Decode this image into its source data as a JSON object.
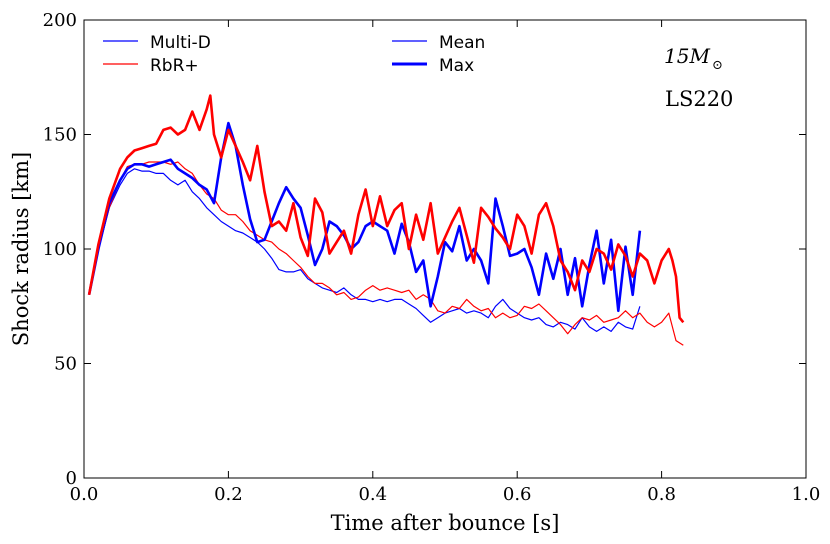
{
  "chart_data": {
    "type": "line",
    "title": "",
    "xlabel": "Time after bounce [s]",
    "ylabel": "Shock radius [km]",
    "xlim": [
      0.0,
      1.0
    ],
    "ylim": [
      0,
      200
    ],
    "xticks": [
      0.0,
      0.2,
      0.4,
      0.6,
      0.8,
      1.0
    ],
    "xtick_labels": [
      "0.0",
      "0.2",
      "0.4",
      "0.6",
      "0.8",
      "1.0"
    ],
    "yticks": [
      0,
      50,
      100,
      150,
      200
    ],
    "ytick_labels": [
      "0",
      "50",
      "100",
      "150",
      "200"
    ],
    "grid": false,
    "annotations": {
      "mass_main": "15M",
      "mass_sub": "⊙",
      "eos": "LS220"
    },
    "legend": {
      "placement": "top",
      "entries": [
        {
          "label": "Multi-D",
          "color": "#0000ff",
          "weight": "thin"
        },
        {
          "label": "RbR+",
          "color": "#ff0000",
          "weight": "thin"
        },
        {
          "label": "Mean",
          "color": "#0000ff",
          "weight": "thin"
        },
        {
          "label": "Max",
          "color": "#0000ff",
          "weight": "thick"
        }
      ]
    },
    "series": [
      {
        "name": "Multi-D",
        "stat": "Mean",
        "color": "#0000ff",
        "x": [
          0.007,
          0.02,
          0.035,
          0.05,
          0.06,
          0.07,
          0.08,
          0.09,
          0.1,
          0.11,
          0.12,
          0.13,
          0.14,
          0.15,
          0.16,
          0.17,
          0.18,
          0.19,
          0.2,
          0.21,
          0.22,
          0.23,
          0.24,
          0.25,
          0.26,
          0.27,
          0.28,
          0.29,
          0.3,
          0.31,
          0.32,
          0.33,
          0.34,
          0.35,
          0.36,
          0.37,
          0.38,
          0.39,
          0.4,
          0.41,
          0.42,
          0.43,
          0.44,
          0.45,
          0.46,
          0.47,
          0.48,
          0.49,
          0.5,
          0.51,
          0.52,
          0.53,
          0.54,
          0.55,
          0.56,
          0.57,
          0.58,
          0.59,
          0.6,
          0.61,
          0.62,
          0.63,
          0.64,
          0.65,
          0.66,
          0.67,
          0.68,
          0.69,
          0.7,
          0.71,
          0.72,
          0.73,
          0.74,
          0.75,
          0.76,
          0.77
        ],
        "y": [
          80,
          100,
          118,
          128,
          133,
          135,
          134,
          134,
          133,
          133,
          130,
          128,
          130,
          125,
          122,
          118,
          115,
          112,
          110,
          108,
          107,
          105,
          103,
          100,
          96,
          91,
          90,
          90,
          91,
          87,
          85,
          83,
          82,
          81,
          83,
          80,
          78,
          78,
          77,
          78,
          77,
          78,
          78,
          76,
          74,
          71,
          68,
          70,
          72,
          73,
          74,
          72,
          73,
          72,
          70,
          75,
          78,
          74,
          72,
          70,
          69,
          70,
          67,
          66,
          68,
          67,
          65,
          70,
          66,
          64,
          66,
          64,
          68,
          66,
          65,
          75
        ]
      },
      {
        "name": "RbR+",
        "stat": "Mean",
        "color": "#ff0000",
        "x": [
          0.007,
          0.02,
          0.035,
          0.05,
          0.06,
          0.07,
          0.08,
          0.09,
          0.1,
          0.11,
          0.12,
          0.13,
          0.14,
          0.15,
          0.16,
          0.17,
          0.18,
          0.19,
          0.2,
          0.21,
          0.22,
          0.23,
          0.24,
          0.25,
          0.26,
          0.27,
          0.28,
          0.29,
          0.3,
          0.31,
          0.32,
          0.33,
          0.34,
          0.35,
          0.36,
          0.37,
          0.38,
          0.39,
          0.4,
          0.41,
          0.42,
          0.43,
          0.44,
          0.45,
          0.46,
          0.47,
          0.48,
          0.49,
          0.5,
          0.51,
          0.52,
          0.53,
          0.54,
          0.55,
          0.56,
          0.57,
          0.58,
          0.59,
          0.6,
          0.61,
          0.62,
          0.63,
          0.64,
          0.65,
          0.66,
          0.67,
          0.68,
          0.69,
          0.7,
          0.71,
          0.72,
          0.73,
          0.74,
          0.75,
          0.76,
          0.77,
          0.78,
          0.79,
          0.8,
          0.81,
          0.82,
          0.83
        ],
        "y": [
          80,
          100,
          118,
          130,
          136,
          137,
          137,
          138,
          138,
          138,
          137,
          138,
          135,
          133,
          128,
          124,
          122,
          117,
          115,
          115,
          112,
          108,
          106,
          104,
          103,
          100,
          98,
          95,
          92,
          88,
          85,
          85,
          83,
          80,
          81,
          78,
          79,
          82,
          84,
          82,
          83,
          82,
          81,
          82,
          78,
          80,
          78,
          73,
          72,
          75,
          74,
          78,
          75,
          73,
          74,
          70,
          72,
          70,
          71,
          75,
          74,
          76,
          73,
          70,
          67,
          63,
          67,
          70,
          69,
          71,
          68,
          69,
          70,
          73,
          70,
          72,
          68,
          66,
          68,
          72,
          60,
          58
        ]
      },
      {
        "name": "Multi-D",
        "stat": "Max",
        "color": "#0000ff",
        "x": [
          0.007,
          0.02,
          0.035,
          0.05,
          0.06,
          0.07,
          0.08,
          0.09,
          0.1,
          0.11,
          0.12,
          0.13,
          0.14,
          0.15,
          0.16,
          0.17,
          0.18,
          0.19,
          0.2,
          0.205,
          0.21,
          0.22,
          0.23,
          0.24,
          0.25,
          0.26,
          0.27,
          0.28,
          0.29,
          0.3,
          0.31,
          0.32,
          0.33,
          0.34,
          0.35,
          0.36,
          0.37,
          0.38,
          0.39,
          0.4,
          0.41,
          0.42,
          0.43,
          0.44,
          0.45,
          0.46,
          0.47,
          0.48,
          0.49,
          0.5,
          0.51,
          0.52,
          0.53,
          0.54,
          0.55,
          0.56,
          0.57,
          0.58,
          0.59,
          0.6,
          0.61,
          0.62,
          0.63,
          0.64,
          0.65,
          0.66,
          0.67,
          0.68,
          0.69,
          0.7,
          0.71,
          0.72,
          0.73,
          0.74,
          0.75,
          0.76,
          0.77
        ],
        "y": [
          80,
          100,
          120,
          130,
          135,
          137,
          137,
          136,
          137,
          138,
          139,
          135,
          133,
          131,
          128,
          126,
          120,
          140,
          155,
          150,
          145,
          128,
          113,
          103,
          104,
          112,
          120,
          127,
          122,
          118,
          106,
          93,
          100,
          112,
          110,
          106,
          100,
          103,
          110,
          112,
          110,
          108,
          98,
          111,
          103,
          90,
          95,
          75,
          88,
          103,
          99,
          110,
          95,
          100,
          95,
          85,
          122,
          110,
          97,
          98,
          100,
          92,
          80,
          98,
          87,
          100,
          80,
          96,
          75,
          93,
          108,
          85,
          104,
          73,
          101,
          80,
          108
        ]
      },
      {
        "name": "RbR+",
        "stat": "Max",
        "color": "#ff0000",
        "x": [
          0.007,
          0.02,
          0.035,
          0.05,
          0.06,
          0.07,
          0.08,
          0.09,
          0.1,
          0.11,
          0.12,
          0.13,
          0.14,
          0.15,
          0.16,
          0.17,
          0.175,
          0.18,
          0.19,
          0.2,
          0.21,
          0.22,
          0.23,
          0.24,
          0.25,
          0.26,
          0.27,
          0.28,
          0.29,
          0.3,
          0.31,
          0.32,
          0.33,
          0.34,
          0.35,
          0.36,
          0.37,
          0.38,
          0.39,
          0.4,
          0.41,
          0.42,
          0.43,
          0.44,
          0.45,
          0.46,
          0.47,
          0.48,
          0.49,
          0.5,
          0.51,
          0.52,
          0.53,
          0.54,
          0.55,
          0.56,
          0.57,
          0.58,
          0.59,
          0.6,
          0.61,
          0.62,
          0.63,
          0.64,
          0.65,
          0.66,
          0.67,
          0.68,
          0.69,
          0.7,
          0.71,
          0.72,
          0.73,
          0.74,
          0.75,
          0.76,
          0.77,
          0.78,
          0.79,
          0.8,
          0.81,
          0.815,
          0.82,
          0.825,
          0.83
        ],
        "y": [
          80,
          102,
          122,
          135,
          140,
          143,
          144,
          145,
          146,
          152,
          153,
          150,
          152,
          160,
          152,
          161,
          167,
          150,
          140,
          152,
          145,
          138,
          130,
          145,
          125,
          110,
          112,
          108,
          120,
          105,
          97,
          122,
          116,
          98,
          103,
          108,
          98,
          115,
          126,
          110,
          123,
          110,
          117,
          120,
          100,
          115,
          104,
          120,
          98,
          105,
          112,
          118,
          106,
          94,
          118,
          114,
          109,
          105,
          100,
          115,
          110,
          98,
          115,
          120,
          110,
          95,
          90,
          82,
          95,
          90,
          100,
          98,
          91,
          102,
          97,
          88,
          98,
          95,
          85,
          95,
          100,
          95,
          88,
          70,
          68
        ]
      }
    ]
  }
}
